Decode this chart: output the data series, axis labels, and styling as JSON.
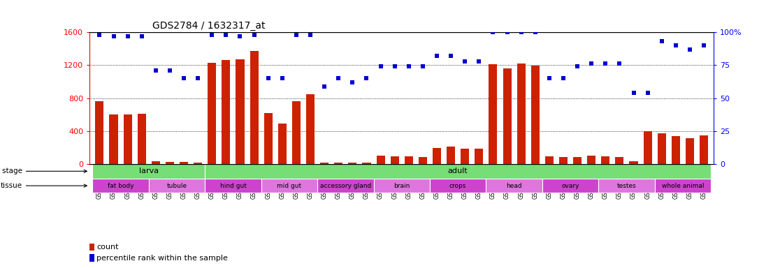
{
  "title": "GDS2784 / 1632317_at",
  "samples": [
    "GSM188092",
    "GSM188093",
    "GSM188094",
    "GSM188095",
    "GSM188100",
    "GSM188101",
    "GSM188102",
    "GSM188103",
    "GSM188072",
    "GSM188073",
    "GSM188074",
    "GSM188075",
    "GSM188076",
    "GSM188077",
    "GSM188078",
    "GSM188079",
    "GSM188080",
    "GSM188081",
    "GSM188082",
    "GSM188083",
    "GSM188084",
    "GSM188085",
    "GSM188086",
    "GSM188087",
    "GSM188088",
    "GSM188089",
    "GSM188090",
    "GSM188091",
    "GSM188096",
    "GSM188097",
    "GSM188098",
    "GSM188099",
    "GSM188104",
    "GSM188105",
    "GSM188106",
    "GSM188107",
    "GSM188108",
    "GSM188109",
    "GSM188110",
    "GSM188111",
    "GSM188112",
    "GSM188113",
    "GSM188114",
    "GSM188115"
  ],
  "counts": [
    760,
    600,
    600,
    610,
    30,
    25,
    25,
    20,
    1230,
    1260,
    1270,
    1370,
    620,
    490,
    760,
    850,
    20,
    20,
    20,
    20,
    100,
    90,
    95,
    85,
    195,
    210,
    185,
    190,
    1210,
    1160,
    1220,
    1190,
    90,
    80,
    80,
    100,
    95,
    80,
    30,
    400,
    370,
    335,
    310,
    345
  ],
  "percentiles": [
    98,
    97,
    97,
    97,
    71,
    71,
    65,
    65,
    98,
    98,
    97,
    98,
    65,
    65,
    98,
    98,
    59,
    65,
    62,
    65,
    74,
    74,
    74,
    74,
    82,
    82,
    78,
    78,
    100,
    100,
    100,
    100,
    65,
    65,
    74,
    76,
    76,
    76,
    54,
    54,
    93,
    90,
    87,
    90
  ],
  "dev_stages": [
    {
      "label": "larva",
      "start": 0,
      "end": 8
    },
    {
      "label": "adult",
      "start": 8,
      "end": 44
    }
  ],
  "tissues": [
    {
      "label": "fat body",
      "start": 0,
      "end": 4
    },
    {
      "label": "tubule",
      "start": 4,
      "end": 8
    },
    {
      "label": "hind gut",
      "start": 8,
      "end": 12
    },
    {
      "label": "mid gut",
      "start": 12,
      "end": 16
    },
    {
      "label": "accessory gland",
      "start": 16,
      "end": 20
    },
    {
      "label": "brain",
      "start": 20,
      "end": 24
    },
    {
      "label": "crops",
      "start": 24,
      "end": 28
    },
    {
      "label": "head",
      "start": 28,
      "end": 32
    },
    {
      "label": "ovary",
      "start": 32,
      "end": 36
    },
    {
      "label": "testes",
      "start": 36,
      "end": 40
    },
    {
      "label": "whole animal",
      "start": 40,
      "end": 44
    }
  ],
  "ylim_left": [
    0,
    1600
  ],
  "ylim_right": [
    0,
    100
  ],
  "yticks_left": [
    0,
    400,
    800,
    1200,
    1600
  ],
  "yticks_right": [
    0,
    25,
    50,
    75,
    100
  ],
  "bar_color": "#cc2200",
  "dot_color": "#0000cc",
  "dev_color": "#77dd77",
  "tissue_colors": [
    "#cc44cc",
    "#dd77dd"
  ],
  "background_color": "#ffffff",
  "grid_color": "#000000"
}
